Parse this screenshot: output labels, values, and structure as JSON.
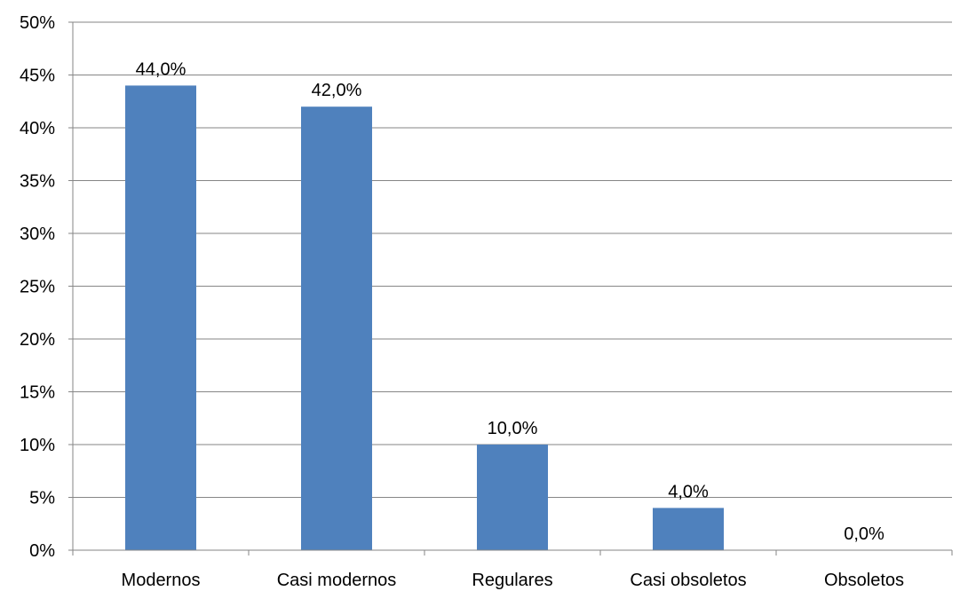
{
  "chart_data": {
    "type": "bar",
    "title": "",
    "xlabel": "",
    "ylabel": "",
    "categories": [
      "Modernos",
      "Casi modernos",
      "Regulares",
      "Casi obsoletos",
      "Obsoletos"
    ],
    "values": [
      44.0,
      42.0,
      10.0,
      4.0,
      0.0
    ],
    "data_labels": [
      "44,0%",
      "42,0%",
      "10,0%",
      "4,0%",
      "0,0%"
    ],
    "ylim": [
      0,
      50
    ],
    "yticks": [
      0,
      5,
      10,
      15,
      20,
      25,
      30,
      35,
      40,
      45,
      50
    ],
    "ytick_labels": [
      "0%",
      "5%",
      "10%",
      "15%",
      "20%",
      "25%",
      "30%",
      "35%",
      "40%",
      "45%",
      "50%"
    ],
    "grid": true,
    "legend": "none",
    "colors": {
      "bar": "#4f81bd",
      "grid": "#868686",
      "axis": "#868686",
      "text": "#000000"
    }
  }
}
